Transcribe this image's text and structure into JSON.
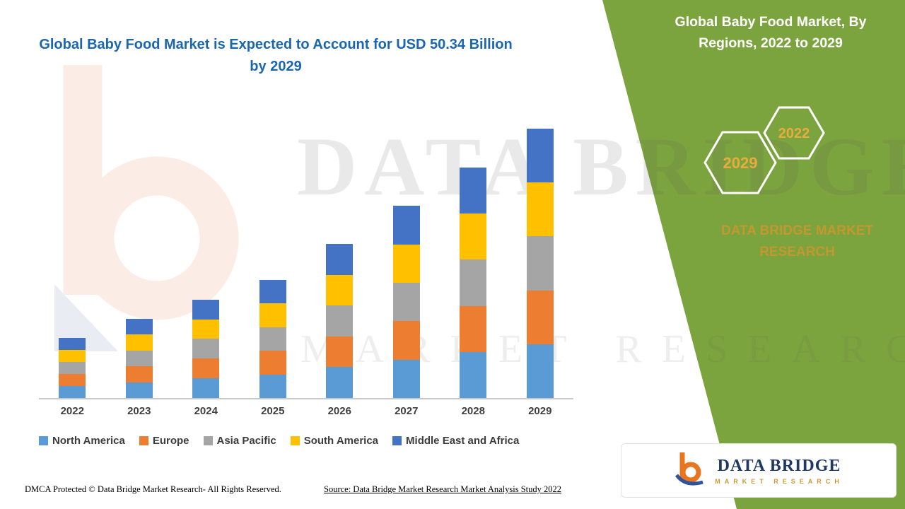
{
  "main_title": "Global Baby Food Market is Expected to Account for USD 50.34 Billion by 2029",
  "footer": {
    "dmca": "DMCA Protected © Data Bridge Market Research- All Rights Reserved.",
    "source": "Source: Data Bridge Market Research Market Analysis Study 2022"
  },
  "side_panel": {
    "title": "Global Baby Food Market, By Regions, 2022 to 2029",
    "hexagon_left": "2029",
    "hexagon_right": "2022",
    "brand_text": "DATA BRIDGE MARKET RESEARCH",
    "logo": {
      "name": "DATA BRIDGE",
      "tagline": "MARKET RESEARCH"
    },
    "colors": {
      "green": "#7CA43E",
      "hex_gold": "#E8AC3C",
      "brand_gold": "#C2982F",
      "logo_navy": "#1F3864",
      "logo_orange": "#E8751F",
      "logo_blue": "#30549B"
    }
  },
  "watermark": {
    "line1": "DATA BRIDGE",
    "line2": "MARKET RESEARCH"
  },
  "chart_data": {
    "type": "bar",
    "stacked": true,
    "title": "Global Baby Food Market is Expected to Account for USD 50.34 Billion by 2029",
    "unit": "USD Billion",
    "xlabel": "",
    "ylabel": "",
    "ylim": [
      0,
      52
    ],
    "grid": false,
    "legend_position": "bottom",
    "categories": [
      "2022",
      "2023",
      "2024",
      "2025",
      "2026",
      "2027",
      "2028",
      "2029"
    ],
    "series": [
      {
        "name": "North America",
        "color": "#5B9BD5",
        "values": [
          2.24,
          2.96,
          3.68,
          4.42,
          5.76,
          7.18,
          8.62,
          10.06
        ]
      },
      {
        "name": "Europe",
        "color": "#ED7D31",
        "values": [
          2.24,
          2.96,
          3.68,
          4.42,
          5.76,
          7.18,
          8.62,
          10.07
        ]
      },
      {
        "name": "Asia Pacific",
        "color": "#A5A5A5",
        "values": [
          2.24,
          2.96,
          3.68,
          4.42,
          5.76,
          7.18,
          8.62,
          10.07
        ]
      },
      {
        "name": "South America",
        "color": "#FFC000",
        "values": [
          2.24,
          2.96,
          3.68,
          4.42,
          5.76,
          7.18,
          8.62,
          10.07
        ]
      },
      {
        "name": "Middle East and Africa",
        "color": "#4472C4",
        "values": [
          2.24,
          2.96,
          3.68,
          4.42,
          5.76,
          7.18,
          8.62,
          10.07
        ]
      }
    ],
    "totals": [
      11.2,
      14.8,
      18.4,
      22.1,
      28.8,
      35.9,
      43.1,
      50.34
    ]
  }
}
